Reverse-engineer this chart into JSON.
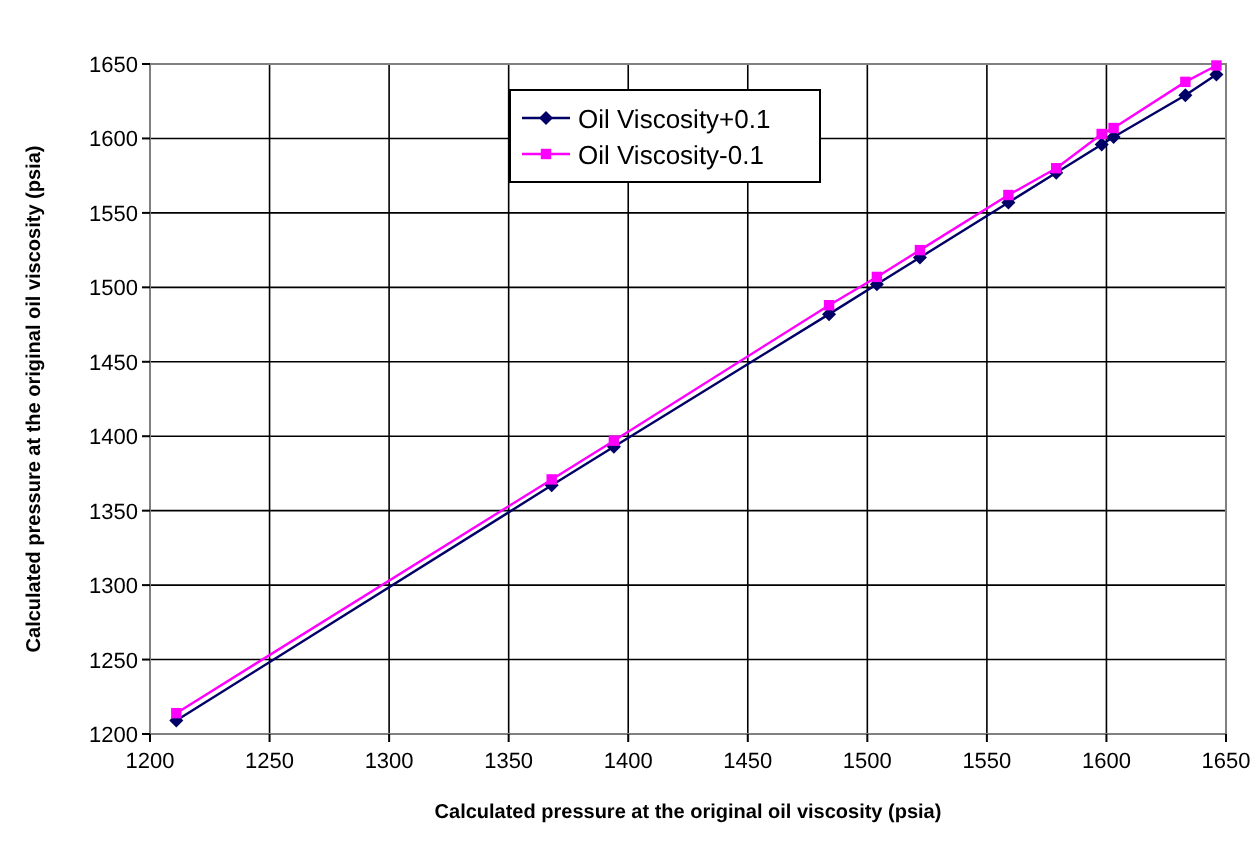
{
  "chart_data": {
    "type": "line",
    "xlabel": "Calculated pressure at the original oil viscosity (psia)",
    "ylabel": "Calculated pressure at the original oil viscosity (psia)",
    "x": [
      1211,
      1368,
      1394,
      1484,
      1504,
      1522,
      1559,
      1579,
      1598,
      1603,
      1633,
      1646
    ],
    "series": [
      {
        "name": "Oil Viscosity+0.1",
        "color": "#000066",
        "marker": "diamond",
        "values": [
          1209,
          1367,
          1393,
          1482,
          1502,
          1520,
          1557,
          1577,
          1596,
          1601,
          1629,
          1643
        ]
      },
      {
        "name": "Oil Viscosity-0.1",
        "color": "#ff00ff",
        "marker": "square",
        "values": [
          1214,
          1371,
          1397,
          1488,
          1507,
          1525,
          1562,
          1580,
          1603,
          1607,
          1638,
          1649
        ]
      }
    ],
    "xlim": [
      1200,
      1650
    ],
    "xticks": [
      1200,
      1250,
      1300,
      1350,
      1400,
      1450,
      1500,
      1550,
      1600,
      1650
    ],
    "ylim": [
      1200,
      1650
    ],
    "yticks": [
      1200,
      1250,
      1300,
      1350,
      1400,
      1450,
      1500,
      1550,
      1600,
      1650
    ],
    "grid": true,
    "legend": "top",
    "line_style": "solid"
  }
}
